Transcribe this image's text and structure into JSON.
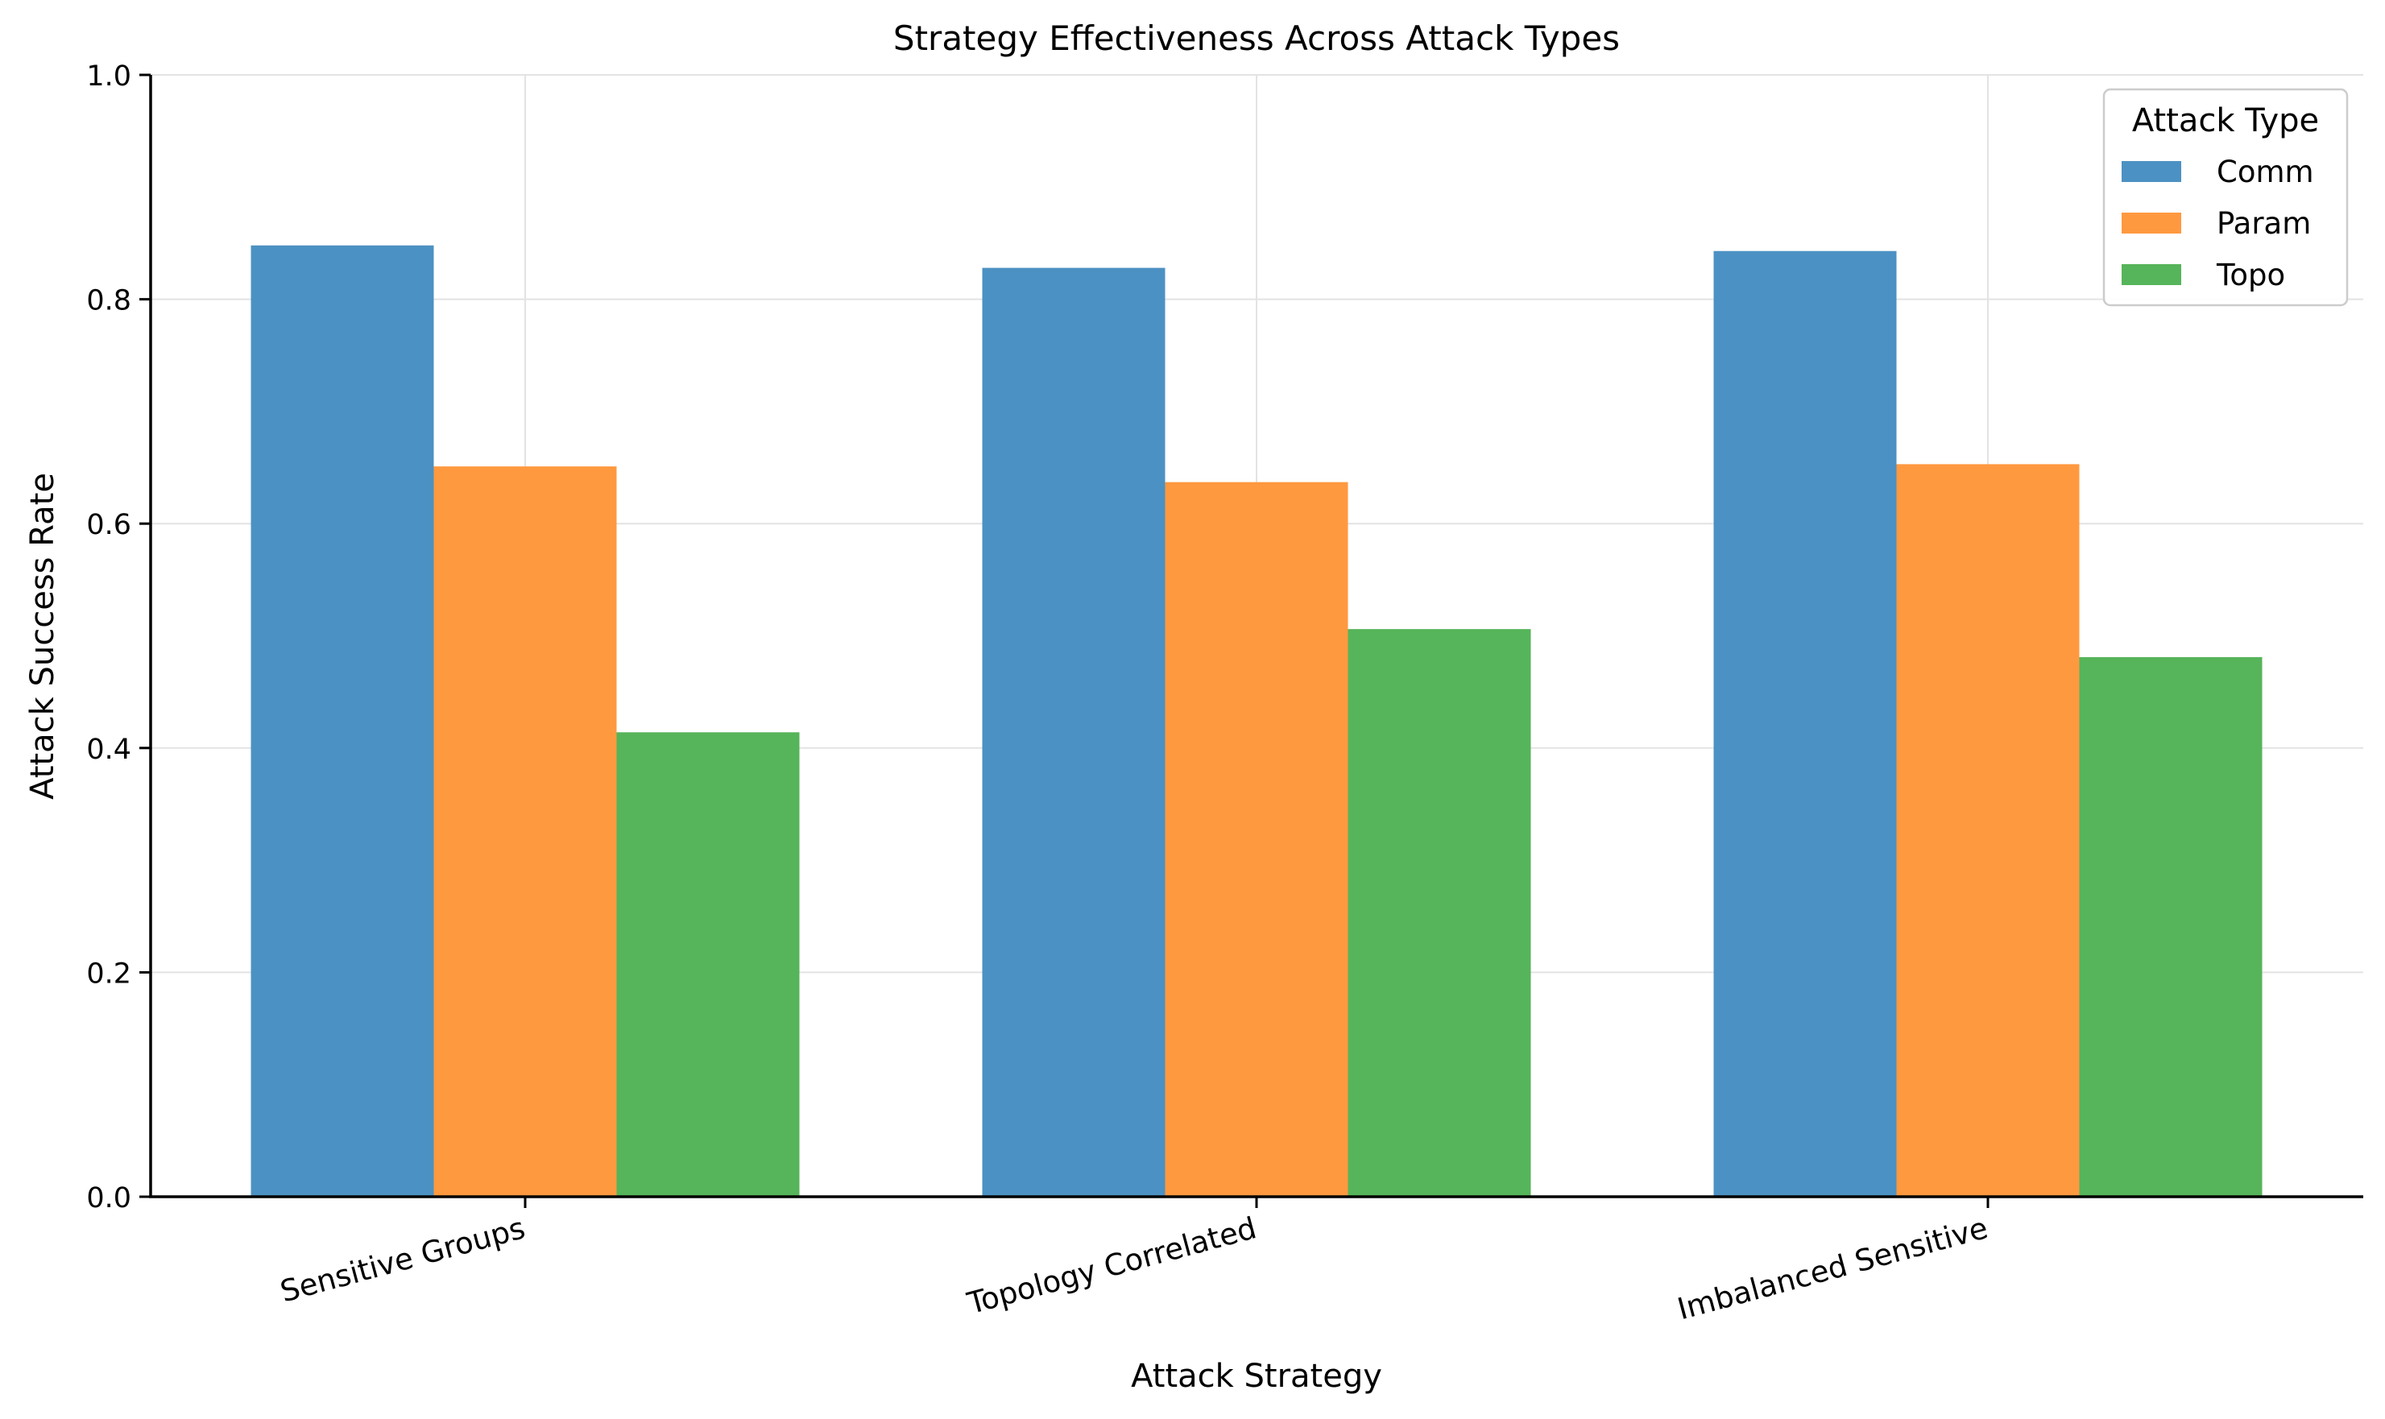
{
  "chart_data": {
    "type": "bar",
    "title": "Strategy Effectiveness Across Attack Types",
    "xlabel": "Attack Strategy",
    "ylabel": "Attack Success Rate",
    "categories": [
      "Sensitive Groups",
      "Topology Correlated",
      "Imbalanced Sensitive"
    ],
    "series": [
      {
        "name": "Comm",
        "values": [
          0.848,
          0.828,
          0.843
        ],
        "color": "#4c91c3"
      },
      {
        "name": "Param",
        "values": [
          0.651,
          0.637,
          0.653
        ],
        "color": "#ff993f"
      },
      {
        "name": "Topo",
        "values": [
          0.414,
          0.506,
          0.481
        ],
        "color": "#56b45a"
      }
    ],
    "ylim": [
      0,
      1
    ],
    "yticks": [
      "0.0",
      "0.2",
      "0.4",
      "0.6",
      "0.8",
      "1.0"
    ],
    "legend": {
      "title": "Attack Type",
      "placement": "top-right"
    },
    "grid": true
  }
}
